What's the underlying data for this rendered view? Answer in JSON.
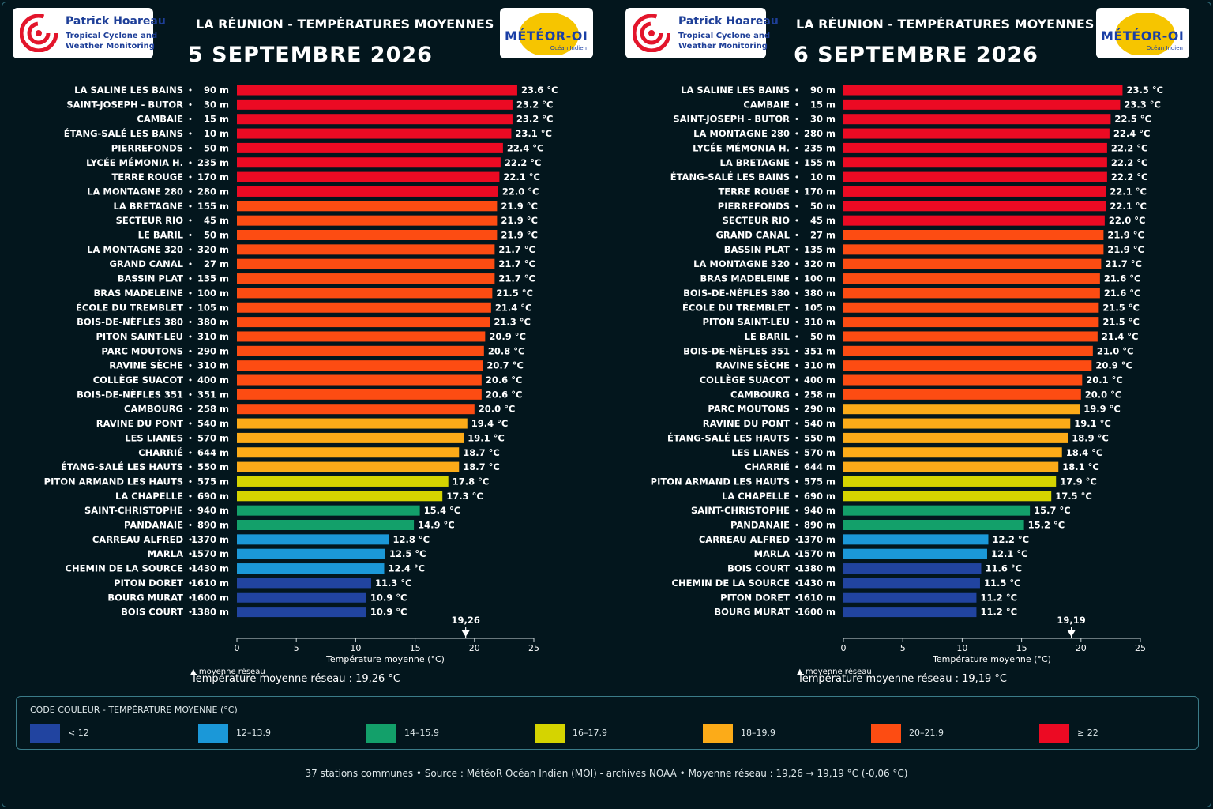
{
  "legend": {
    "title": "CODE COULEUR - TEMPÉRATURE MOYENNE (°C)",
    "items": [
      {
        "label": "< 12",
        "color": "#2144a0"
      },
      {
        "label": "12–13.9",
        "color": "#1b98d8"
      },
      {
        "label": "14–15.9",
        "color": "#13a06a"
      },
      {
        "label": "16–17.9",
        "color": "#d5d400"
      },
      {
        "label": "18–19.9",
        "color": "#fcab18"
      },
      {
        "label": "20–21.9",
        "color": "#fd4c12"
      },
      {
        "label": "≥ 22",
        "color": "#ec0a23"
      }
    ]
  },
  "footer": "37 stations communes  •  Source : MétéoR Océan Indien (MOI) - archives NOAA  •  Moyenne réseau : 19,26 → 19,19 °C (-0,06 °C)",
  "logos": {
    "left_line1": "Patrick Hoareau",
    "left_line2": "Tropical Cyclone and",
    "left_line3": "Weather Monitoring",
    "right_main": "MÉTÉOR-OI",
    "right_sub": "Océan Indien"
  },
  "chart_data": [
    {
      "type": "bar",
      "title": "LA RÉUNION - TEMPÉRATURES MOYENNES",
      "subtitle": "5 SEPTEMBRE 2026",
      "xlabel": "Température moyenne (°C)",
      "xlim": [
        0,
        25
      ],
      "xticks": [
        0,
        5,
        10,
        15,
        20,
        25
      ],
      "mean_value": 19.26,
      "mean_label": "19,26",
      "mean_marker_text": "▲ moyenne réseau",
      "mean_text": "Température moyenne réseau : 19,26 °C",
      "stations": [
        {
          "name": "LA SALINE LES BAINS",
          "alt": "90 m",
          "value": 23.6,
          "label": "23.6 °C"
        },
        {
          "name": "SAINT-JOSEPH - BUTOR",
          "alt": "30 m",
          "value": 23.2,
          "label": "23.2 °C"
        },
        {
          "name": "CAMBAIE",
          "alt": "15 m",
          "value": 23.2,
          "label": "23.2 °C"
        },
        {
          "name": "ÉTANG-SALÉ LES BAINS",
          "alt": "10 m",
          "value": 23.1,
          "label": "23.1 °C"
        },
        {
          "name": "PIERREFONDS",
          "alt": "50 m",
          "value": 22.4,
          "label": "22.4 °C"
        },
        {
          "name": "LYCÉE MÉMONIA H.",
          "alt": "235 m",
          "value": 22.2,
          "label": "22.2 °C"
        },
        {
          "name": "TERRE ROUGE",
          "alt": "170 m",
          "value": 22.1,
          "label": "22.1 °C"
        },
        {
          "name": "LA MONTAGNE 280",
          "alt": "280 m",
          "value": 22.0,
          "label": "22.0 °C"
        },
        {
          "name": "LA BRETAGNE",
          "alt": "155 m",
          "value": 21.9,
          "label": "21.9 °C"
        },
        {
          "name": "SECTEUR RIO",
          "alt": "45 m",
          "value": 21.9,
          "label": "21.9 °C"
        },
        {
          "name": "LE BARIL",
          "alt": "50 m",
          "value": 21.9,
          "label": "21.9 °C"
        },
        {
          "name": "LA MONTAGNE 320",
          "alt": "320 m",
          "value": 21.7,
          "label": "21.7 °C"
        },
        {
          "name": "GRAND CANAL",
          "alt": "27 m",
          "value": 21.7,
          "label": "21.7 °C"
        },
        {
          "name": "BASSIN PLAT",
          "alt": "135 m",
          "value": 21.7,
          "label": "21.7 °C"
        },
        {
          "name": "BRAS MADELEINE",
          "alt": "100 m",
          "value": 21.5,
          "label": "21.5 °C"
        },
        {
          "name": "ÉCOLE DU TREMBLET",
          "alt": "105 m",
          "value": 21.4,
          "label": "21.4 °C"
        },
        {
          "name": "BOIS-DE-NÈFLES 380",
          "alt": "380 m",
          "value": 21.3,
          "label": "21.3 °C"
        },
        {
          "name": "PITON SAINT-LEU",
          "alt": "310 m",
          "value": 20.9,
          "label": "20.9 °C"
        },
        {
          "name": "PARC MOUTONS",
          "alt": "290 m",
          "value": 20.8,
          "label": "20.8 °C"
        },
        {
          "name": "RAVINE SÈCHE",
          "alt": "310 m",
          "value": 20.7,
          "label": "20.7 °C"
        },
        {
          "name": "COLLÈGE SUACOT",
          "alt": "400 m",
          "value": 20.6,
          "label": "20.6 °C"
        },
        {
          "name": "BOIS-DE-NÈFLES 351",
          "alt": "351 m",
          "value": 20.6,
          "label": "20.6 °C"
        },
        {
          "name": "CAMBOURG",
          "alt": "258 m",
          "value": 20.0,
          "label": "20.0 °C"
        },
        {
          "name": "RAVINE DU PONT",
          "alt": "540 m",
          "value": 19.4,
          "label": "19.4 °C"
        },
        {
          "name": "LES LIANES",
          "alt": "570 m",
          "value": 19.1,
          "label": "19.1 °C"
        },
        {
          "name": "CHARRIÉ",
          "alt": "644 m",
          "value": 18.7,
          "label": "18.7 °C"
        },
        {
          "name": "ÉTANG-SALÉ LES HAUTS",
          "alt": "550 m",
          "value": 18.7,
          "label": "18.7 °C"
        },
        {
          "name": "PITON ARMAND LES HAUTS",
          "alt": "575 m",
          "value": 17.8,
          "label": "17.8 °C"
        },
        {
          "name": "LA CHAPELLE",
          "alt": "690 m",
          "value": 17.3,
          "label": "17.3 °C"
        },
        {
          "name": "SAINT-CHRISTOPHE",
          "alt": "940 m",
          "value": 15.4,
          "label": "15.4 °C"
        },
        {
          "name": "PANDANAIE",
          "alt": "890 m",
          "value": 14.9,
          "label": "14.9 °C"
        },
        {
          "name": "CARREAU ALFRED",
          "alt": "1370 m",
          "value": 12.8,
          "label": "12.8 °C"
        },
        {
          "name": "MARLA",
          "alt": "1570 m",
          "value": 12.5,
          "label": "12.5 °C"
        },
        {
          "name": "CHEMIN DE LA SOURCE",
          "alt": "1430 m",
          "value": 12.4,
          "label": "12.4 °C"
        },
        {
          "name": "PITON DORET",
          "alt": "1610 m",
          "value": 11.3,
          "label": "11.3 °C"
        },
        {
          "name": "BOURG MURAT",
          "alt": "1600 m",
          "value": 10.9,
          "label": "10.9 °C"
        },
        {
          "name": "BOIS COURT",
          "alt": "1380 m",
          "value": 10.9,
          "label": "10.9 °C"
        }
      ]
    },
    {
      "type": "bar",
      "title": "LA RÉUNION - TEMPÉRATURES MOYENNES",
      "subtitle": "6 SEPTEMBRE 2026",
      "xlabel": "Température moyenne (°C)",
      "xlim": [
        0,
        25
      ],
      "xticks": [
        0,
        5,
        10,
        15,
        20,
        25
      ],
      "mean_value": 19.19,
      "mean_label": "19,19",
      "mean_marker_text": "▲ moyenne réseau",
      "mean_text": "Température moyenne réseau : 19,19 °C",
      "stations": [
        {
          "name": "LA SALINE LES BAINS",
          "alt": "90 m",
          "value": 23.5,
          "label": "23.5 °C"
        },
        {
          "name": "CAMBAIE",
          "alt": "15 m",
          "value": 23.3,
          "label": "23.3 °C"
        },
        {
          "name": "SAINT-JOSEPH - BUTOR",
          "alt": "30 m",
          "value": 22.5,
          "label": "22.5 °C"
        },
        {
          "name": "LA MONTAGNE 280",
          "alt": "280 m",
          "value": 22.4,
          "label": "22.4 °C"
        },
        {
          "name": "LYCÉE MÉMONIA H.",
          "alt": "235 m",
          "value": 22.2,
          "label": "22.2 °C"
        },
        {
          "name": "LA BRETAGNE",
          "alt": "155 m",
          "value": 22.2,
          "label": "22.2 °C"
        },
        {
          "name": "ÉTANG-SALÉ LES BAINS",
          "alt": "10 m",
          "value": 22.2,
          "label": "22.2 °C"
        },
        {
          "name": "TERRE ROUGE",
          "alt": "170 m",
          "value": 22.1,
          "label": "22.1 °C"
        },
        {
          "name": "PIERREFONDS",
          "alt": "50 m",
          "value": 22.1,
          "label": "22.1 °C"
        },
        {
          "name": "SECTEUR RIO",
          "alt": "45 m",
          "value": 22.0,
          "label": "22.0 °C"
        },
        {
          "name": "GRAND CANAL",
          "alt": "27 m",
          "value": 21.9,
          "label": "21.9 °C"
        },
        {
          "name": "BASSIN PLAT",
          "alt": "135 m",
          "value": 21.9,
          "label": "21.9 °C"
        },
        {
          "name": "LA MONTAGNE 320",
          "alt": "320 m",
          "value": 21.7,
          "label": "21.7 °C"
        },
        {
          "name": "BRAS MADELEINE",
          "alt": "100 m",
          "value": 21.6,
          "label": "21.6 °C"
        },
        {
          "name": "BOIS-DE-NÈFLES 380",
          "alt": "380 m",
          "value": 21.6,
          "label": "21.6 °C"
        },
        {
          "name": "ÉCOLE DU TREMBLET",
          "alt": "105 m",
          "value": 21.5,
          "label": "21.5 °C"
        },
        {
          "name": "PITON SAINT-LEU",
          "alt": "310 m",
          "value": 21.5,
          "label": "21.5 °C"
        },
        {
          "name": "LE BARIL",
          "alt": "50 m",
          "value": 21.4,
          "label": "21.4 °C"
        },
        {
          "name": "BOIS-DE-NÈFLES 351",
          "alt": "351 m",
          "value": 21.0,
          "label": "21.0 °C"
        },
        {
          "name": "RAVINE SÈCHE",
          "alt": "310 m",
          "value": 20.9,
          "label": "20.9 °C"
        },
        {
          "name": "COLLÈGE SUACOT",
          "alt": "400 m",
          "value": 20.1,
          "label": "20.1 °C"
        },
        {
          "name": "CAMBOURG",
          "alt": "258 m",
          "value": 20.0,
          "label": "20.0 °C"
        },
        {
          "name": "PARC MOUTONS",
          "alt": "290 m",
          "value": 19.9,
          "label": "19.9 °C"
        },
        {
          "name": "RAVINE DU PONT",
          "alt": "540 m",
          "value": 19.1,
          "label": "19.1 °C"
        },
        {
          "name": "ÉTANG-SALÉ LES HAUTS",
          "alt": "550 m",
          "value": 18.9,
          "label": "18.9 °C"
        },
        {
          "name": "LES LIANES",
          "alt": "570 m",
          "value": 18.4,
          "label": "18.4 °C"
        },
        {
          "name": "CHARRIÉ",
          "alt": "644 m",
          "value": 18.1,
          "label": "18.1 °C"
        },
        {
          "name": "PITON ARMAND LES HAUTS",
          "alt": "575 m",
          "value": 17.9,
          "label": "17.9 °C"
        },
        {
          "name": "LA CHAPELLE",
          "alt": "690 m",
          "value": 17.5,
          "label": "17.5 °C"
        },
        {
          "name": "SAINT-CHRISTOPHE",
          "alt": "940 m",
          "value": 15.7,
          "label": "15.7 °C"
        },
        {
          "name": "PANDANAIE",
          "alt": "890 m",
          "value": 15.2,
          "label": "15.2 °C"
        },
        {
          "name": "CARREAU ALFRED",
          "alt": "1370 m",
          "value": 12.2,
          "label": "12.2 °C"
        },
        {
          "name": "MARLA",
          "alt": "1570 m",
          "value": 12.1,
          "label": "12.1 °C"
        },
        {
          "name": "BOIS COURT",
          "alt": "1380 m",
          "value": 11.6,
          "label": "11.6 °C"
        },
        {
          "name": "CHEMIN DE LA SOURCE",
          "alt": "1430 m",
          "value": 11.5,
          "label": "11.5 °C"
        },
        {
          "name": "PITON DORET",
          "alt": "1610 m",
          "value": 11.2,
          "label": "11.2 °C"
        },
        {
          "name": "BOURG MURAT",
          "alt": "1600 m",
          "value": 11.2,
          "label": "11.2 °C"
        }
      ]
    }
  ]
}
